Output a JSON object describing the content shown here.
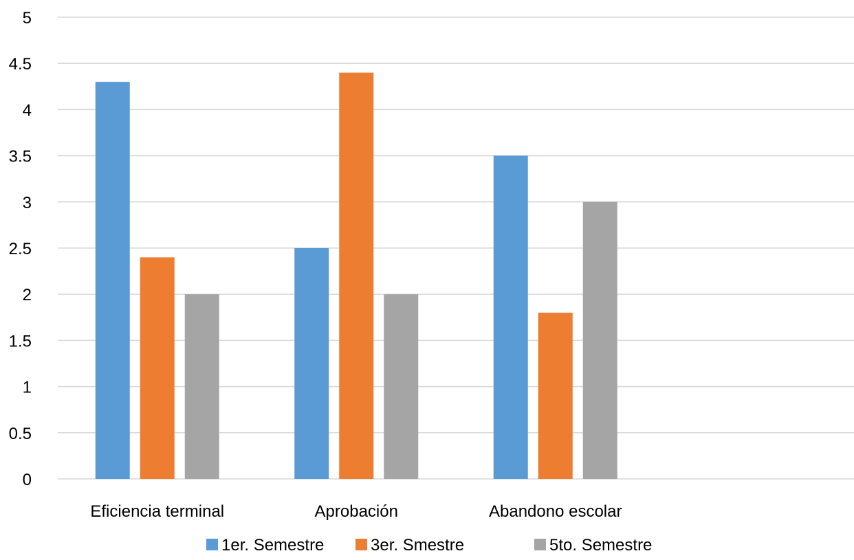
{
  "chart_data": {
    "type": "bar",
    "categories": [
      "Eficiencia terminal",
      "Aprobación",
      "Abandono escolar",
      ""
    ],
    "series": [
      {
        "name": "1er. Semestre",
        "values": [
          4.3,
          2.5,
          3.5,
          null
        ],
        "color": "#5b9bd5"
      },
      {
        "name": "3er. Smestre",
        "values": [
          2.4,
          4.4,
          1.8,
          null
        ],
        "color": "#ed7d31"
      },
      {
        "name": "5to. Semestre",
        "values": [
          2.0,
          2.0,
          3.0,
          null
        ],
        "color": "#a5a5a5"
      }
    ],
    "ylim": [
      0,
      5
    ],
    "yticks": [
      "0",
      "0.5",
      "1",
      "1.5",
      "2",
      "2.5",
      "3",
      "3.5",
      "4",
      "4.5",
      "5"
    ],
    "grid": true,
    "legend_position": "bottom"
  }
}
